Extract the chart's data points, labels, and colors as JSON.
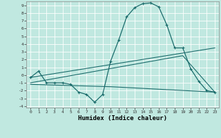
{
  "xlabel": "Humidex (Indice chaleur)",
  "bg_color": "#c0e8e0",
  "grid_color": "#ffffff",
  "line_color": "#1a6b6b",
  "x_ticks": [
    0,
    1,
    2,
    3,
    4,
    5,
    6,
    7,
    8,
    9,
    10,
    11,
    12,
    13,
    14,
    15,
    16,
    17,
    18,
    19,
    20,
    21,
    22,
    23
  ],
  "ylim": [
    -4.2,
    9.5
  ],
  "xlim": [
    -0.5,
    23.5
  ],
  "yticks": [
    -4,
    -3,
    -2,
    -1,
    0,
    1,
    2,
    3,
    4,
    5,
    6,
    7,
    8,
    9
  ],
  "line1_x": [
    0,
    1,
    2,
    3,
    4,
    5,
    6,
    7,
    8,
    9,
    10,
    11,
    12,
    13,
    14,
    15,
    16,
    17,
    18,
    19,
    20,
    21,
    22,
    23
  ],
  "line1_y": [
    -0.3,
    0.5,
    -1.0,
    -1.0,
    -1.0,
    -1.2,
    -2.2,
    -2.5,
    -3.5,
    -2.5,
    1.8,
    4.5,
    7.5,
    8.7,
    9.2,
    9.3,
    8.8,
    6.5,
    3.5,
    3.5,
    0.8,
    -0.8,
    -2.0,
    -2.2
  ],
  "line2_x": [
    0,
    23
  ],
  "line2_y": [
    -0.3,
    3.5
  ],
  "line3_x": [
    0,
    19,
    23
  ],
  "line3_y": [
    -1.0,
    2.5,
    -2.2
  ],
  "line4_x": [
    0,
    10,
    23
  ],
  "line4_y": [
    -1.2,
    -1.5,
    -2.2
  ]
}
